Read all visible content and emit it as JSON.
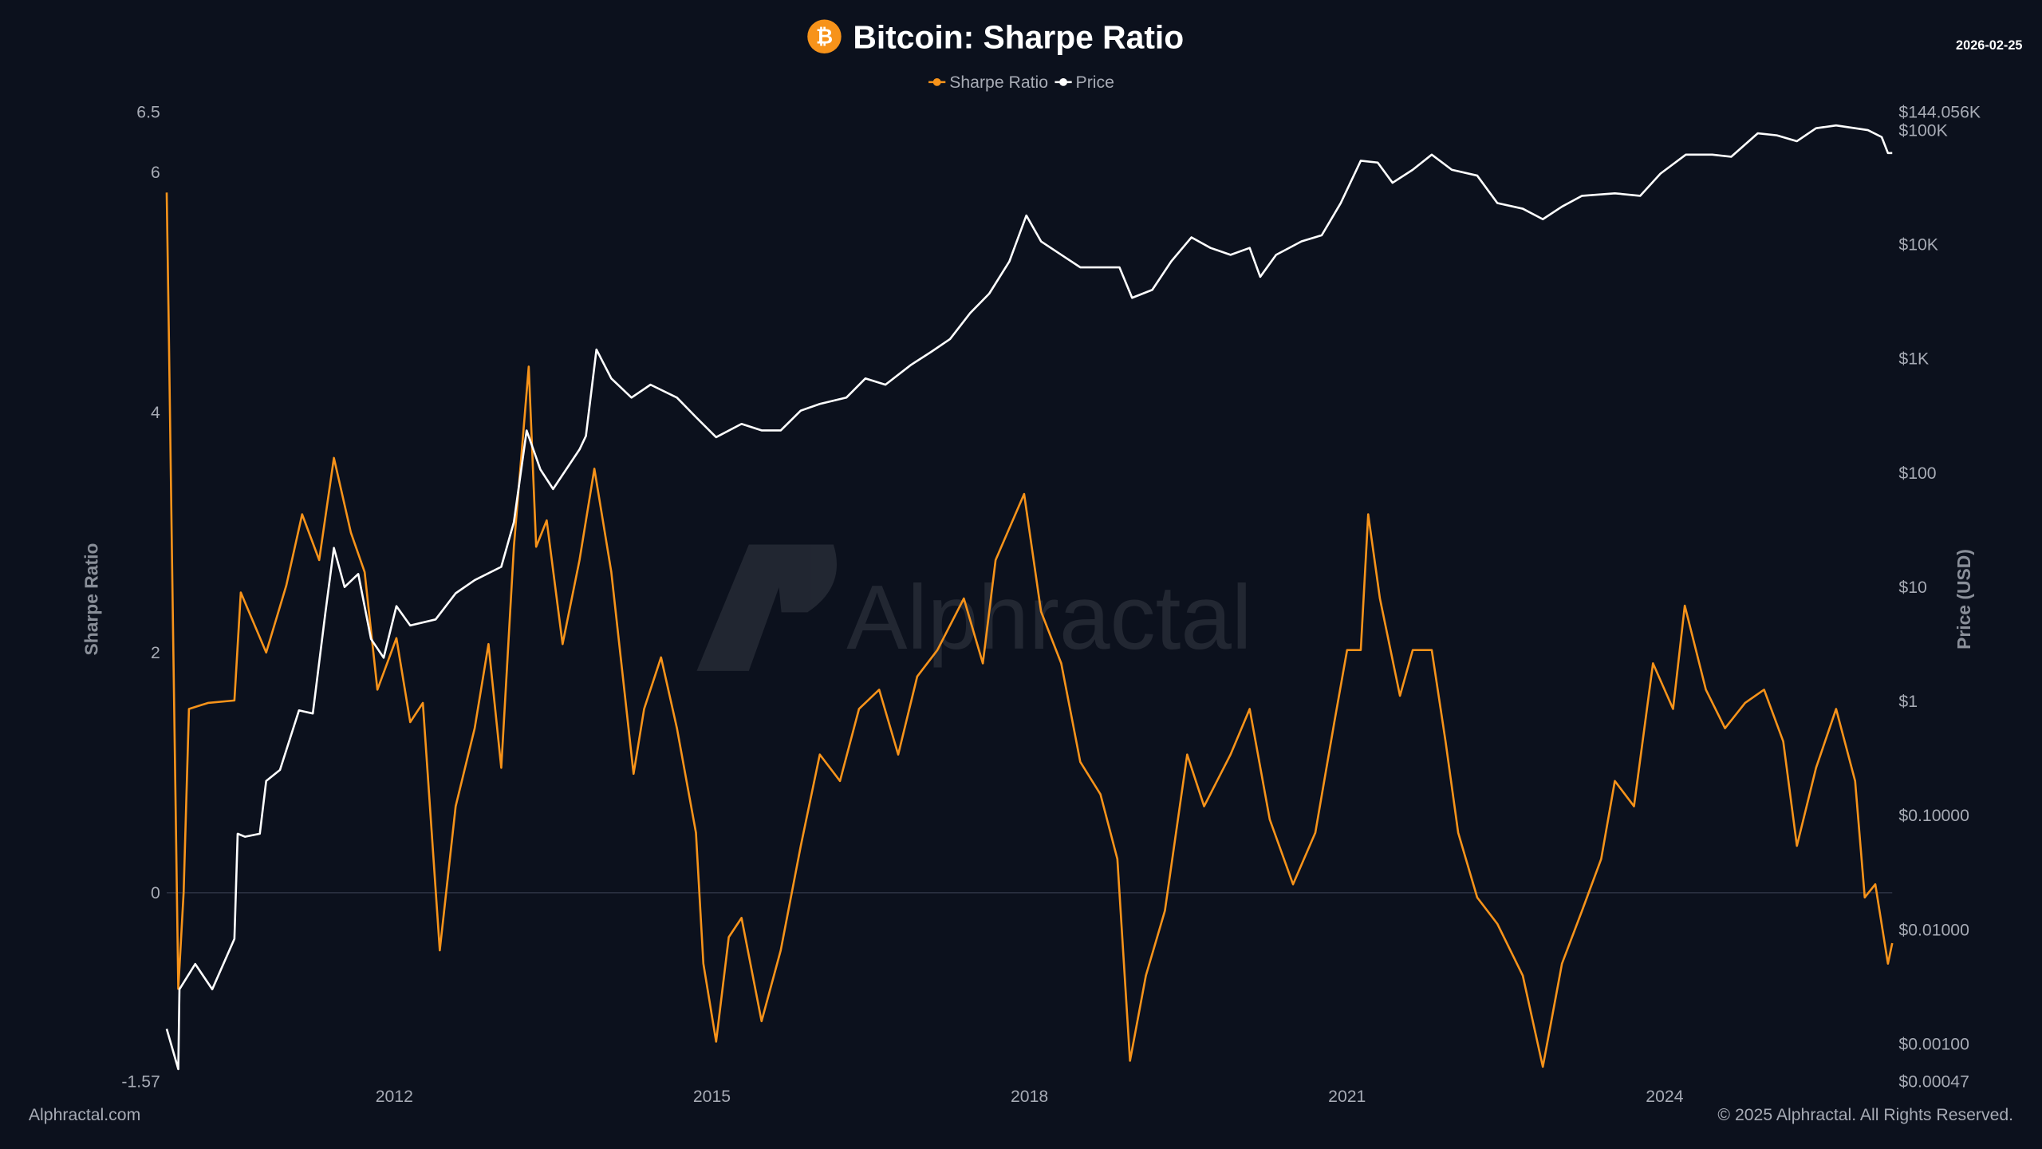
{
  "header": {
    "title": "Bitcoin: Sharpe Ratio",
    "date": "2026-02-25",
    "logo_icon": "bitcoin-icon"
  },
  "footer": {
    "left": "Alphractal.com",
    "right": "© 2025 Alphractal. All Rights Reserved."
  },
  "watermark": "Alphractal",
  "colors": {
    "background": "#0c111d",
    "sharpe": "#f7931a",
    "price": "#ffffff",
    "tick_text": "#a7abb5"
  },
  "chart_data": {
    "type": "line",
    "title": "Bitcoin: Sharpe Ratio",
    "legend": {
      "placement": "top-center",
      "entries": [
        "Sharpe Ratio",
        "Price"
      ]
    },
    "grid": false,
    "x_axis": {
      "type": "date (year)",
      "ticks": [
        "2012",
        "2015",
        "2018",
        "2021",
        "2024"
      ],
      "tick_values": [
        2012,
        2015,
        2018,
        2021,
        2024
      ],
      "range": [
        2009.85,
        2026.15
      ]
    },
    "y_left": {
      "label": "Sharpe Ratio",
      "range": [
        -1.57,
        6.5
      ],
      "ticks": [
        "-1.57",
        "0",
        "2",
        "4",
        "6",
        "6.5"
      ],
      "tick_values": [
        -1.57,
        0,
        2,
        4,
        6,
        6.5
      ],
      "zero_line": true
    },
    "y_right": {
      "label": "Price (USD)",
      "scale": "log",
      "range": [
        0.00047,
        144056
      ],
      "ticks": [
        "$0.00047",
        "$0.00100",
        "$0.01000",
        "$0.10000",
        "$1",
        "$10",
        "$100",
        "$1K",
        "$10K",
        "$100K",
        "$144.056K"
      ],
      "tick_values": [
        0.00047,
        0.001,
        0.01,
        0.1,
        1,
        10,
        100,
        1000,
        10000,
        100000,
        144056
      ]
    },
    "series": [
      {
        "name": "Sharpe Ratio",
        "axis": "left",
        "x": [
          2009.85,
          2009.87,
          2009.9,
          2009.96,
          2010.01,
          2010.06,
          2010.24,
          2010.49,
          2010.55,
          2010.79,
          2010.98,
          2011.13,
          2011.29,
          2011.43,
          2011.59,
          2011.72,
          2011.84,
          2012.02,
          2012.15,
          2012.27,
          2012.43,
          2012.58,
          2012.76,
          2012.89,
          2013.01,
          2013.13,
          2013.27,
          2013.34,
          2013.44,
          2013.59,
          2013.75,
          2013.89,
          2014.05,
          2014.26,
          2014.36,
          2014.52,
          2014.67,
          2014.85,
          2014.92,
          2015.04,
          2015.16,
          2015.28,
          2015.47,
          2015.65,
          2015.84,
          2016.02,
          2016.21,
          2016.39,
          2016.58,
          2016.76,
          2016.94,
          2017.13,
          2017.38,
          2017.56,
          2017.68,
          2017.95,
          2018.11,
          2018.3,
          2018.48,
          2018.67,
          2018.83,
          2018.95,
          2019.1,
          2019.28,
          2019.49,
          2019.65,
          2019.9,
          2020.08,
          2020.27,
          2020.49,
          2020.7,
          2020.88,
          2021.0,
          2021.13,
          2021.2,
          2021.31,
          2021.5,
          2021.62,
          2021.8,
          2021.93,
          2022.05,
          2022.23,
          2022.42,
          2022.66,
          2022.85,
          2023.03,
          2023.22,
          2023.4,
          2023.53,
          2023.71,
          2023.89,
          2024.08,
          2024.19,
          2024.39,
          2024.57,
          2024.76,
          2024.94,
          2025.12,
          2025.25,
          2025.43,
          2025.62,
          2025.8,
          2025.89,
          2025.99,
          2026.11,
          2026.15
        ],
        "values": [
          5.83,
          4.7,
          2.77,
          -0.8,
          0,
          1.53,
          1.58,
          1.6,
          2.5,
          2.0,
          2.56,
          3.15,
          2.77,
          3.62,
          3.0,
          2.67,
          1.69,
          2.12,
          1.42,
          1.58,
          -0.48,
          0.72,
          1.37,
          2.07,
          1.04,
          2.88,
          4.38,
          2.88,
          3.1,
          2.07,
          2.77,
          3.53,
          2.67,
          0.99,
          1.53,
          1.96,
          1.37,
          0.5,
          -0.59,
          -1.24,
          -0.37,
          -0.21,
          -1.07,
          -0.48,
          0.39,
          1.15,
          0.93,
          1.53,
          1.69,
          1.15,
          1.8,
          2.02,
          2.45,
          1.91,
          2.77,
          3.32,
          2.34,
          1.91,
          1.09,
          0.82,
          0.28,
          -1.4,
          -0.69,
          -0.15,
          1.15,
          0.72,
          1.15,
          1.53,
          0.61,
          0.07,
          0.5,
          1.42,
          2.02,
          2.02,
          3.15,
          2.45,
          1.64,
          2.02,
          2.02,
          1.26,
          0.5,
          -0.04,
          -0.26,
          -0.69,
          -1.45,
          -0.59,
          -0.15,
          0.28,
          0.93,
          0.72,
          1.91,
          1.53,
          2.39,
          1.69,
          1.37,
          1.58,
          1.69,
          1.26,
          0.39,
          1.04,
          1.53,
          0.93,
          -0.04,
          0.07,
          -0.59,
          -0.42
        ]
      },
      {
        "name": "Price",
        "axis": "right",
        "x": [
          2009.85,
          2009.96,
          2009.97,
          2010.12,
          2010.28,
          2010.49,
          2010.52,
          2010.59,
          2010.73,
          2010.79,
          2010.92,
          2011.1,
          2011.23,
          2011.35,
          2011.43,
          2011.53,
          2011.66,
          2011.78,
          2011.9,
          2012.02,
          2012.15,
          2012.39,
          2012.58,
          2012.76,
          2013.01,
          2013.13,
          2013.25,
          2013.38,
          2013.5,
          2013.75,
          2013.81,
          2013.91,
          2014.05,
          2014.24,
          2014.42,
          2014.67,
          2014.85,
          2015.04,
          2015.28,
          2015.47,
          2015.65,
          2015.84,
          2016.02,
          2016.27,
          2016.45,
          2016.64,
          2016.88,
          2017.07,
          2017.25,
          2017.44,
          2017.62,
          2017.81,
          2017.97,
          2018.11,
          2018.3,
          2018.48,
          2018.67,
          2018.85,
          2018.97,
          2019.16,
          2019.34,
          2019.53,
          2019.71,
          2019.9,
          2020.08,
          2020.18,
          2020.33,
          2020.57,
          2020.76,
          2020.94,
          2021.13,
          2021.29,
          2021.43,
          2021.62,
          2021.8,
          2021.99,
          2022.23,
          2022.42,
          2022.66,
          2022.85,
          2023.03,
          2023.22,
          2023.53,
          2023.77,
          2023.96,
          2024.2,
          2024.45,
          2024.63,
          2024.88,
          2025.06,
          2025.25,
          2025.43,
          2025.62,
          2025.8,
          2025.92,
          2026.05,
          2026.11,
          2026.15
        ],
        "values": [
          0.00135,
          0.0006,
          0.003,
          0.005,
          0.003,
          0.0083,
          0.069,
          0.065,
          0.069,
          0.2,
          0.25,
          0.83,
          0.78,
          6,
          22,
          10,
          13,
          3.5,
          2.4,
          6.8,
          4.6,
          5.2,
          8.8,
          11.5,
          15,
          37,
          234,
          107,
          72,
          160,
          210,
          1200,
          670,
          455,
          590,
          455,
          307,
          205,
          268,
          235,
          235,
          350,
          400,
          455,
          670,
          590,
          880,
          1140,
          1480,
          2500,
          3700,
          7100,
          17900,
          10600,
          8100,
          6300,
          6300,
          6300,
          3400,
          4000,
          7100,
          11500,
          9300,
          8100,
          9300,
          5200,
          8100,
          10600,
          12000,
          23000,
          54000,
          52000,
          34600,
          45000,
          61000,
          45000,
          40000,
          23000,
          20500,
          16600,
          21400,
          26600,
          28000,
          26600,
          41600,
          61000,
          61000,
          58500,
          94000,
          90000,
          80000,
          104000,
          110000,
          104000,
          100000,
          87000,
          63000,
          63000
        ]
      }
    ]
  }
}
